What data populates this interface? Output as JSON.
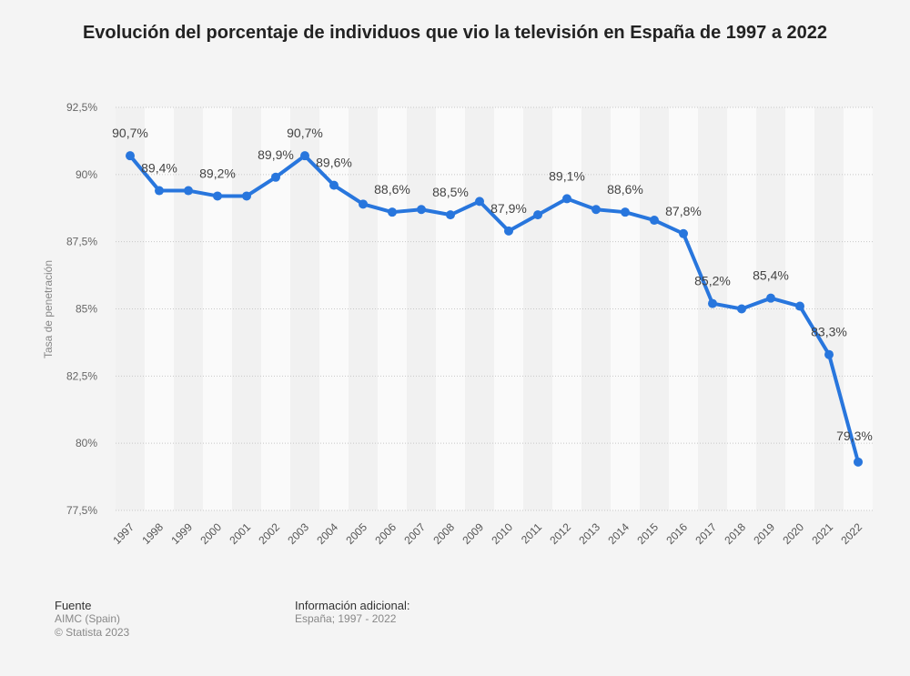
{
  "chart_data": {
    "type": "line",
    "title": "Evolución del porcentaje de individuos que vio la televisión en España de 1997 a 2022",
    "xlabel": "",
    "ylabel": "Tasa de penetración",
    "ylim": [
      77.5,
      92.5
    ],
    "yticks": [
      "77,5%",
      "80%",
      "82,5%",
      "85%",
      "87,5%",
      "90%",
      "92,5%"
    ],
    "ytick_values": [
      77.5,
      80,
      82.5,
      85,
      87.5,
      90,
      92.5
    ],
    "grid": true,
    "color": "#2876dd",
    "categories": [
      "1997",
      "1998",
      "1999",
      "2000",
      "2001",
      "2002",
      "2003",
      "2004",
      "2005",
      "2006",
      "2007",
      "2008",
      "2009",
      "2010",
      "2011",
      "2012",
      "2013",
      "2014",
      "2015",
      "2016",
      "2017",
      "2018",
      "2019",
      "2020",
      "2021",
      "2022"
    ],
    "values": [
      90.7,
      89.4,
      89.4,
      89.2,
      89.2,
      89.9,
      90.7,
      89.6,
      88.9,
      88.6,
      88.7,
      88.5,
      89.0,
      87.9,
      88.5,
      89.1,
      88.7,
      88.6,
      88.3,
      87.8,
      85.2,
      85.0,
      85.4,
      85.1,
      83.3,
      79.3
    ],
    "data_labels": [
      "90,7%",
      "89,4%",
      null,
      "89,2%",
      null,
      "89,9%",
      "90,7%",
      "89,6%",
      null,
      "88,6%",
      null,
      "88,5%",
      null,
      "87,9%",
      null,
      "89,1%",
      null,
      "88,6%",
      null,
      "87,8%",
      "85,2%",
      null,
      "85,4%",
      null,
      "83,3%",
      "79,3%"
    ]
  },
  "footer": {
    "source_heading": "Fuente",
    "source": "AIMC (Spain)",
    "copyright": "© Statista 2023",
    "info_heading": "Información adicional:",
    "info": "España; 1997 - 2022"
  }
}
